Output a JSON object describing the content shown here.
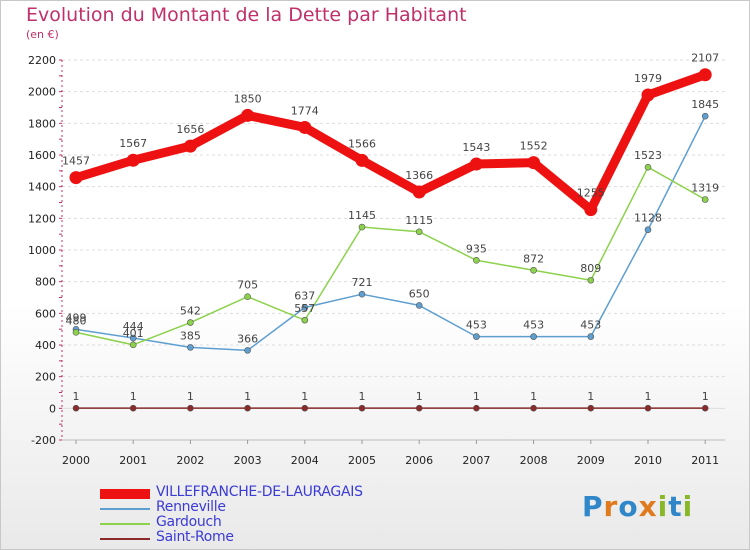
{
  "header": {
    "title": "Evolution du Montant de la Dette par Habitant",
    "subtitle": "(en €)"
  },
  "logo": {
    "letters": [
      {
        "ch": "P",
        "color": "#2f86c8"
      },
      {
        "ch": "r",
        "color": "#e07a1e"
      },
      {
        "ch": "o",
        "color": "#2f86c8"
      },
      {
        "ch": "x",
        "color": "#e07a1e"
      },
      {
        "ch": "i",
        "color": "#88b829"
      },
      {
        "ch": "t",
        "color": "#2f86c8"
      },
      {
        "ch": "i",
        "color": "#88b829"
      }
    ]
  },
  "chart_data": {
    "type": "line",
    "x": [
      "2000",
      "2001",
      "2002",
      "2003",
      "2004",
      "2005",
      "2006",
      "2007",
      "2008",
      "2009",
      "2010",
      "2011"
    ],
    "ylim": [
      -200,
      2200
    ],
    "yticks": [
      -200,
      0,
      200,
      400,
      600,
      800,
      1000,
      1200,
      1400,
      1600,
      1800,
      2000,
      2200
    ],
    "grid": "horizontal",
    "legend_position": "bottom-left",
    "series": [
      {
        "name": "VILLEFRANCHE-DE-LAURAGAIS",
        "color": "#ee1111",
        "values": [
          1457,
          1567,
          1656,
          1850,
          1774,
          1566,
          1366,
          1543,
          1552,
          1255,
          1979,
          2107
        ]
      },
      {
        "name": "Renneville",
        "color": "#5f9fd0",
        "values": [
          499,
          444,
          385,
          366,
          637,
          721,
          650,
          453,
          453,
          453,
          1128,
          1845
        ]
      },
      {
        "name": "Gardouch",
        "color": "#8cd24c",
        "values": [
          480,
          401,
          542,
          705,
          557,
          1145,
          1115,
          935,
          872,
          809,
          1523,
          1319
        ]
      },
      {
        "name": "Saint-Rome",
        "color": "#8a2a2a",
        "values": [
          1,
          1,
          1,
          1,
          1,
          1,
          1,
          1,
          1,
          1,
          1,
          1
        ]
      }
    ]
  }
}
